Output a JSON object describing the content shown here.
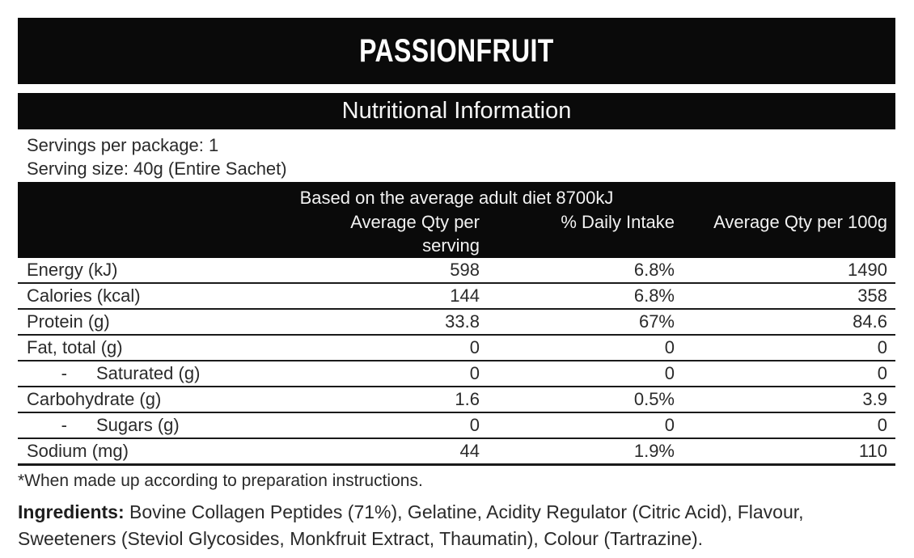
{
  "product_title": "PASSIONFRUIT",
  "section_title": "Nutritional Information",
  "serving_info": {
    "servings_per_package": "Servings per package: 1",
    "serving_size": "Serving size: 40g (Entire Sachet)"
  },
  "table": {
    "diet_note": "Based on the average adult diet 8700kJ",
    "col_serving": "Average Qty per serving",
    "col_daily_intake": "% Daily Intake",
    "col_per_100g": "Average Qty per 100g",
    "rows": [
      {
        "name": "Energy (kJ)",
        "serving": "598",
        "daily": "6.8%",
        "per100g": "1490"
      },
      {
        "name": "Calories (kcal)",
        "serving": "144",
        "daily": "6.8%",
        "per100g": "358"
      },
      {
        "name": "Protein (g)",
        "serving": "33.8",
        "daily": "67%",
        "per100g": "84.6"
      },
      {
        "name": "Fat, total (g)",
        "serving": "0",
        "daily": "0",
        "per100g": "0"
      },
      {
        "name": "Saturated (g)",
        "dash": "-",
        "serving": "0",
        "daily": "0",
        "per100g": "0"
      },
      {
        "name": "Carbohydrate (g)",
        "serving": "1.6",
        "daily": "0.5%",
        "per100g": "3.9"
      },
      {
        "name": "Sugars (g)",
        "dash": "-",
        "serving": "0",
        "daily": "0",
        "per100g": "0"
      },
      {
        "name": "Sodium (mg)",
        "serving": "44",
        "daily": "1.9%",
        "per100g": "110"
      }
    ]
  },
  "footnote": "*When made up according to preparation instructions.",
  "ingredients": {
    "label": "Ingredients:",
    "line1": " Bovine Collagen Peptides (71%), Gelatine, Acidity Regulator (Citric Acid), Flavour,",
    "line2": "Sweeteners (Steviol Glycosides, Monkfruit Extract, Thaumatin), Colour (Tartrazine)."
  },
  "colors": {
    "banner_background": "#0a0a0a",
    "banner_text": "#ffffff",
    "body_text": "#2a2a2a",
    "rule_lines": "#1a1a1a"
  }
}
